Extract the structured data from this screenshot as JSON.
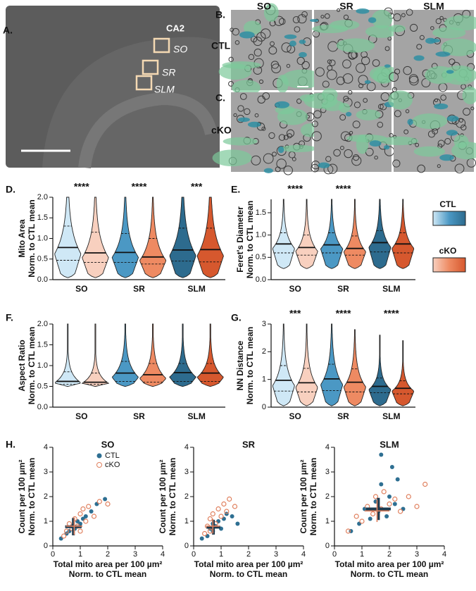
{
  "figure": {
    "panel_labels": [
      "A.",
      "B.",
      "C.",
      "D.",
      "E.",
      "F.",
      "G.",
      "H."
    ],
    "panel_a": {
      "region": "CA2",
      "layers": [
        "SO",
        "SR",
        "SLM"
      ]
    },
    "panels_bc": {
      "columns": [
        "SO",
        "SR",
        "SLM"
      ],
      "rows": [
        "CTL",
        "cKO"
      ]
    }
  },
  "chart_data": [
    {
      "type": "violin",
      "ylabel": [
        "Mito Area",
        "Norm. to CTL mean"
      ],
      "categories": [
        "SO",
        "SR",
        "SLM"
      ],
      "ylim": [
        0,
        2
      ],
      "yticks": [
        {
          "value": 0,
          "label": "0.0"
        },
        {
          "value": 0.5,
          "label": "0.5"
        },
        {
          "value": 1,
          "label": "1.0"
        },
        {
          "value": 1.5,
          "label": "1.5"
        },
        {
          "value": 2,
          "label": "2.0"
        }
      ],
      "significance": [
        "****",
        "****",
        "***"
      ],
      "legend": false,
      "series": [
        {
          "name": "CTL",
          "colors": [
            "#cfe8f6",
            "#4b98c4",
            "#2d6b8e"
          ],
          "median": [
            0.78,
            0.66,
            0.72
          ],
          "q1": [
            0.47,
            0.42,
            0.45
          ],
          "q3": [
            1.3,
            1.12,
            1.25
          ],
          "min": [
            0.05,
            0.05,
            0.05
          ],
          "max": [
            2,
            2,
            2
          ]
        },
        {
          "name": "cKO",
          "colors": [
            "#f8d0bf",
            "#ee8a62",
            "#d6582e"
          ],
          "median": [
            0.65,
            0.55,
            0.73
          ],
          "q1": [
            0.42,
            0.38,
            0.43
          ],
          "q3": [
            1.15,
            1.0,
            1.25
          ],
          "min": [
            0.05,
            0.05,
            0.05
          ],
          "max": [
            2,
            2,
            2
          ]
        }
      ]
    },
    {
      "type": "violin",
      "ylabel": [
        "Feret's Diameter",
        "Norm. to CTL mean"
      ],
      "categories": [
        "SO",
        "SR",
        "SLM"
      ],
      "ylim": [
        0,
        1.8
      ],
      "yticks": [
        {
          "value": 0,
          "label": "0.0"
        },
        {
          "value": 0.5,
          "label": "0.5"
        },
        {
          "value": 1,
          "label": "1.0"
        },
        {
          "value": 1.5,
          "label": "1.5"
        }
      ],
      "significance": [
        "****",
        "****",
        null
      ],
      "legend": true,
      "series": [
        {
          "name": "CTL",
          "colors": [
            "#cfe8f6",
            "#4b98c4",
            "#2d6b8e"
          ],
          "median": [
            0.8,
            0.78,
            0.83
          ],
          "q1": [
            0.6,
            0.6,
            0.62
          ],
          "q3": [
            1.05,
            1.05,
            1.1
          ],
          "min": [
            0.25,
            0.25,
            0.25
          ],
          "max": [
            1.8,
            1.8,
            1.8
          ]
        },
        {
          "name": "cKO",
          "colors": [
            "#f8d0bf",
            "#ee8a62",
            "#d6582e"
          ],
          "median": [
            0.72,
            0.7,
            0.8
          ],
          "q1": [
            0.55,
            0.55,
            0.6
          ],
          "q3": [
            1.0,
            0.98,
            1.05
          ],
          "min": [
            0.25,
            0.25,
            0.25
          ],
          "max": [
            1.8,
            1.8,
            1.8
          ]
        }
      ]
    },
    {
      "type": "violin",
      "ylabel": [
        "Aspect Ratio",
        "Norm. to CTL mean"
      ],
      "categories": [
        "SO",
        "SR",
        "SLM"
      ],
      "ylim": [
        0,
        2
      ],
      "yticks": [
        {
          "value": 0,
          "label": "0.0"
        },
        {
          "value": 0.5,
          "label": "0.5"
        },
        {
          "value": 1,
          "label": "1.0"
        },
        {
          "value": 1.5,
          "label": "1.5"
        },
        {
          "value": 2,
          "label": "2.0"
        }
      ],
      "legend": false,
      "series": [
        {
          "name": "CTL",
          "colors": [
            "#cfe8f6",
            "#4b98c4",
            "#2d6b8e"
          ],
          "median": [
            0.62,
            0.82,
            0.83
          ],
          "q1": [
            0.55,
            0.62,
            0.62
          ],
          "q3": [
            0.85,
            1.1,
            1.05
          ],
          "min": [
            0.5,
            0.5,
            0.5
          ],
          "max": [
            2,
            2,
            2
          ]
        },
        {
          "name": "cKO",
          "colors": [
            "#f8d0bf",
            "#ee8a62",
            "#d6582e"
          ],
          "median": [
            0.6,
            0.78,
            0.82
          ],
          "q1": [
            0.55,
            0.6,
            0.62
          ],
          "q3": [
            0.82,
            1.05,
            1.05
          ],
          "min": [
            0.5,
            0.5,
            0.5
          ],
          "max": [
            2,
            2,
            2
          ]
        }
      ]
    },
    {
      "type": "violin",
      "ylabel": [
        "NN Distance",
        "Norm. to CTL mean"
      ],
      "categories": [
        "SO",
        "SR",
        "SLM"
      ],
      "ylim": [
        0,
        3
      ],
      "yticks": [
        0,
        1,
        2,
        3
      ],
      "significance": [
        "***",
        "****",
        "****"
      ],
      "legend": false,
      "series": [
        {
          "name": "CTL",
          "colors": [
            "#cfe8f6",
            "#4b98c4",
            "#2d6b8e"
          ],
          "median": [
            0.97,
            1.02,
            0.75
          ],
          "q1": [
            0.58,
            0.6,
            0.52
          ],
          "q3": [
            1.5,
            1.55,
            1.05
          ],
          "min": [
            0.05,
            0.05,
            0.05
          ],
          "max": [
            3,
            3,
            2.6
          ]
        },
        {
          "name": "cKO",
          "colors": [
            "#f8d0bf",
            "#ee8a62",
            "#d6582e"
          ],
          "median": [
            0.88,
            0.9,
            0.68
          ],
          "q1": [
            0.55,
            0.55,
            0.48
          ],
          "q3": [
            1.4,
            1.38,
            0.95
          ],
          "min": [
            0.05,
            0.05,
            0.05
          ],
          "max": [
            3,
            2.8,
            2.4
          ]
        }
      ]
    },
    {
      "type": "scatter",
      "title": "SO",
      "xlabel": [
        "Total mito area per 100 µm²",
        "Norm. to CTL mean"
      ],
      "ylabel": [
        "Count per 100 µm²",
        "Norm. to CTL mean"
      ],
      "xlim": [
        0,
        4
      ],
      "ylim": [
        0,
        4
      ],
      "xticks": [
        0,
        1,
        2,
        3,
        4
      ],
      "yticks": [
        0,
        1,
        2,
        3,
        4
      ],
      "legend": true,
      "series": [
        {
          "name": "CTL",
          "color": "#2e6f92",
          "x": [
            0.3,
            0.5,
            0.6,
            0.7,
            0.8,
            0.9,
            1.0,
            1.1,
            1.2,
            1.4,
            1.6,
            1.9
          ],
          "y": [
            0.3,
            0.5,
            0.6,
            0.8,
            0.7,
            1.0,
            0.9,
            1.1,
            1.2,
            1.4,
            1.7,
            1.9
          ],
          "mean_x": 0.75,
          "mean_y": 0.78,
          "sd_x": 0.3,
          "sd_y": 0.35
        },
        {
          "name": "cKO",
          "color": "#e0805e",
          "x": [
            0.4,
            0.5,
            0.6,
            0.7,
            0.8,
            0.9,
            1.0,
            1.0,
            1.1,
            1.2,
            1.3,
            1.5,
            1.7,
            2.0
          ],
          "y": [
            0.4,
            0.6,
            0.9,
            0.7,
            1.1,
            0.8,
            1.3,
            0.6,
            1.5,
            1.0,
            1.6,
            1.2,
            1.8,
            1.7
          ],
          "mean_x": 0.78,
          "mean_y": 0.8,
          "sd_x": 0.3,
          "sd_y": 0.35
        }
      ]
    },
    {
      "type": "scatter",
      "title": "SR",
      "xlabel": [
        "Total mito area per 100 µm²",
        "Norm. to CTL mean"
      ],
      "ylabel": [
        "Count per 100 µm²",
        "Norm. to CTL mean"
      ],
      "xlim": [
        0,
        4
      ],
      "ylim": [
        0,
        4
      ],
      "xticks": [
        0,
        1,
        2,
        3,
        4
      ],
      "yticks": [
        0,
        1,
        2,
        3,
        4
      ],
      "legend": false,
      "series": [
        {
          "name": "CTL",
          "color": "#2e6f92",
          "x": [
            0.3,
            0.5,
            0.6,
            0.7,
            0.7,
            0.8,
            0.9,
            1.0,
            1.1,
            1.2,
            1.4,
            1.6
          ],
          "y": [
            0.3,
            0.4,
            0.7,
            0.6,
            0.9,
            0.8,
            1.0,
            0.7,
            1.1,
            1.3,
            1.2,
            0.9
          ],
          "mean_x": 0.72,
          "mean_y": 0.76,
          "sd_x": 0.25,
          "sd_y": 0.3
        },
        {
          "name": "cKO",
          "color": "#e0805e",
          "x": [
            0.4,
            0.5,
            0.6,
            0.6,
            0.7,
            0.8,
            0.9,
            1.0,
            1.1,
            1.2,
            1.3,
            1.5
          ],
          "y": [
            0.5,
            0.8,
            0.6,
            1.1,
            1.3,
            0.9,
            1.5,
            1.2,
            1.7,
            1.4,
            1.9,
            1.6
          ],
          "mean_x": 0.7,
          "mean_y": 0.8,
          "sd_x": 0.25,
          "sd_y": 0.3
        }
      ]
    },
    {
      "type": "scatter",
      "title": "SLM",
      "xlabel": [
        "Total mito area per 100 µm²",
        "Norm. to CTL mean"
      ],
      "ylabel": [
        "Count per 100 µm²",
        "Norm. to CTL mean"
      ],
      "xlim": [
        0,
        4
      ],
      "ylim": [
        0,
        4
      ],
      "xticks": [
        0,
        1,
        2,
        3,
        4
      ],
      "yticks": [
        0,
        1,
        2,
        3,
        4
      ],
      "legend": false,
      "series": [
        {
          "name": "CTL",
          "color": "#2e6f92",
          "x": [
            0.6,
            0.9,
            1.1,
            1.3,
            1.5,
            1.6,
            1.7,
            1.9,
            2.0,
            2.2,
            2.3,
            2.5,
            1.7,
            2.1
          ],
          "y": [
            0.6,
            0.9,
            1.5,
            1.1,
            1.8,
            1.4,
            2.5,
            1.2,
            2.0,
            1.7,
            2.7,
            1.5,
            3.7,
            3.2
          ],
          "mean_x": 1.6,
          "mean_y": 1.5,
          "sd_x": 0.45,
          "sd_y": 0.45
        },
        {
          "name": "cKO",
          "color": "#e0805e",
          "x": [
            0.5,
            0.8,
            1.0,
            1.2,
            1.4,
            1.5,
            1.7,
            1.8,
            2.0,
            2.2,
            2.4,
            2.7,
            3.0,
            3.3
          ],
          "y": [
            0.6,
            1.2,
            1.0,
            1.6,
            1.3,
            2.0,
            1.5,
            2.2,
            1.7,
            1.9,
            1.4,
            2.0,
            1.6,
            2.5
          ],
          "mean_x": 1.55,
          "mean_y": 1.42,
          "sd_x": 0.45,
          "sd_y": 0.45
        }
      ]
    }
  ]
}
